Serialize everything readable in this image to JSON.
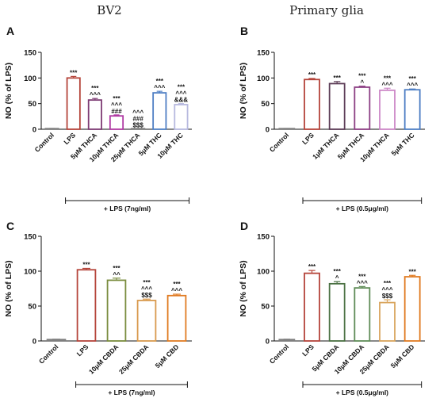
{
  "column_titles": {
    "left": "BV2",
    "right": "Primary glia"
  },
  "chart_data": [
    {
      "panel": "A",
      "type": "bar",
      "ylabel": "NO (% of LPS)",
      "ylim": [
        0,
        150
      ],
      "yticks": [
        0,
        50,
        100,
        150
      ],
      "bracket_label": "+ LPS (7ng/ml)",
      "bracket_from": 1,
      "categories": [
        "Control",
        "LPS",
        "5μM THCA",
        "10μM THCA",
        "25μM THCA",
        "5μM THC",
        "10μM THC"
      ],
      "values": [
        1,
        100,
        57,
        26,
        0,
        71,
        48
      ],
      "errors": [
        0.5,
        3,
        3,
        2,
        0.5,
        3,
        2
      ],
      "colors": [
        "#7f7f7f",
        "#b5443a",
        "#7d3b73",
        "#b03aa3",
        "#7f7f7f",
        "#4f7fc4",
        "#b7b9df"
      ],
      "significance": [
        [],
        [
          "***"
        ],
        [
          "***",
          "^^^"
        ],
        [
          "***",
          "^^^",
          "###"
        ],
        [
          "^^^",
          "###",
          "$$$"
        ],
        [
          "***",
          "^^^"
        ],
        [
          "***",
          "^^^",
          "&&&"
        ]
      ]
    },
    {
      "panel": "B",
      "type": "bar",
      "ylabel": "NO (% of LPS)",
      "ylim": [
        0,
        150
      ],
      "yticks": [
        0,
        50,
        100,
        150
      ],
      "bracket_label": "+ LPS (0.5μg/ml)",
      "bracket_from": 1,
      "categories": [
        "Control",
        "LPS",
        "1μM THCA",
        "5μM THCA",
        "10μM THCA",
        "5μM THC"
      ],
      "values": [
        1,
        97,
        89,
        82,
        76,
        77
      ],
      "errors": [
        0.5,
        2,
        4,
        2,
        4,
        1.5
      ],
      "colors": [
        "#7f7f7f",
        "#b5443a",
        "#5b3b55",
        "#8c3f84",
        "#cc86c6",
        "#4f7fc4"
      ],
      "significance": [
        [],
        [
          "***"
        ],
        [
          "***"
        ],
        [
          "***",
          "^"
        ],
        [
          "***",
          "^^^"
        ],
        [
          "***",
          "^^^"
        ]
      ]
    },
    {
      "panel": "C",
      "type": "bar",
      "ylabel": "NO (% of LPS)",
      "ylim": [
        0,
        150
      ],
      "yticks": [
        0,
        50,
        100,
        150
      ],
      "bracket_label": "+ LPS (7ng/ml)",
      "bracket_from": 1,
      "categories": [
        "Control",
        "LPS",
        "10μM CBDA",
        "25μM CBDA",
        "5μM CBD"
      ],
      "values": [
        2,
        102,
        87,
        58,
        65
      ],
      "errors": [
        0.5,
        2,
        3,
        2,
        2
      ],
      "colors": [
        "#7f7f7f",
        "#b5443a",
        "#7a8c3e",
        "#d99a4e",
        "#e07b22"
      ],
      "significance": [
        [],
        [
          "***"
        ],
        [
          "***",
          "^^"
        ],
        [
          "***",
          "^^^",
          "$$$"
        ],
        [
          "***",
          "^^^"
        ]
      ]
    },
    {
      "panel": "D",
      "type": "bar",
      "ylabel": "NO (% of LPS)",
      "ylim": [
        0,
        150
      ],
      "yticks": [
        0,
        50,
        100,
        150
      ],
      "bracket_label": "+ LPS (0.5μg/ml)",
      "bracket_from": 1,
      "categories": [
        "Control",
        "LPS",
        "5μM CBDA",
        "10μM CBDA",
        "25μM CBDA",
        "5μM CBD"
      ],
      "values": [
        2,
        97,
        82,
        76,
        55,
        92
      ],
      "errors": [
        0.5,
        4,
        3,
        2,
        4,
        2
      ],
      "colors": [
        "#7f7f7f",
        "#b5443a",
        "#4a7042",
        "#5f8c57",
        "#d9a45c",
        "#e07b22"
      ],
      "significance": [
        [],
        [
          "***"
        ],
        [
          "***",
          "^"
        ],
        [
          "***",
          "^^^"
        ],
        [
          "***",
          "^^^",
          "$$$"
        ],
        [
          "***"
        ]
      ]
    }
  ]
}
